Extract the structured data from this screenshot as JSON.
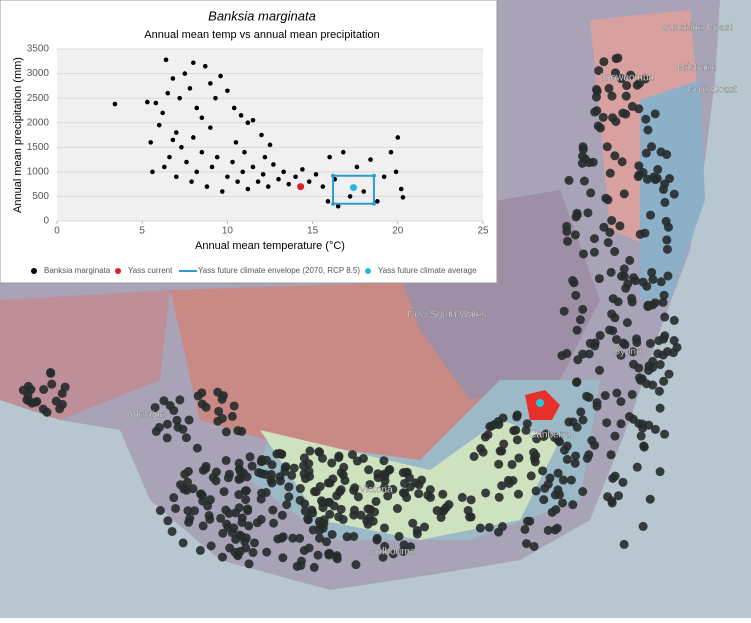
{
  "chart_data": {
    "type": "scatter",
    "title": "Banksia marginata",
    "subtitle": "Annual mean temp vs annual mean precipitation",
    "x_label": "Annual mean temperature (°C)",
    "y_label": "Annual mean precipitation (mm)",
    "xlim": [
      0,
      25
    ],
    "xticks": [
      0,
      5,
      10,
      15,
      20,
      25
    ],
    "ylim": [
      0,
      3500
    ],
    "yticks": [
      0,
      500,
      1000,
      1500,
      2000,
      2500,
      3000,
      3500
    ],
    "grid": true,
    "legend": "bottom",
    "series": [
      {
        "name": "Banksia marginata",
        "color": "#000000",
        "x": [
          3.4,
          5.3,
          5.8,
          6.0,
          6.2,
          6.4,
          6.5,
          6.8,
          7.0,
          7.2,
          7.5,
          7.8,
          8.0,
          8.2,
          8.5,
          8.7,
          9.0,
          9.3,
          9.6,
          10.0,
          10.4,
          10.8,
          11.2,
          11.5,
          12.0,
          12.5,
          5.5,
          5.6,
          6.3,
          6.6,
          7.0,
          7.3,
          7.6,
          7.9,
          8.2,
          8.5,
          8.8,
          9.1,
          9.4,
          9.7,
          10.0,
          10.3,
          10.6,
          10.9,
          11.2,
          11.5,
          11.8,
          12.1,
          12.4,
          12.7,
          13.0,
          13.3,
          13.6,
          14.0,
          14.4,
          14.8,
          15.2,
          15.6,
          16.0,
          16.3,
          16.8,
          17.2,
          17.6,
          18.0,
          18.4,
          18.8,
          19.2,
          19.6,
          20.0,
          20.2,
          20.3,
          19.9,
          15.9,
          16.5,
          8.0,
          9.0,
          10.5,
          11.0,
          12.2,
          6.8
        ],
        "values": [
          2380,
          2420,
          2400,
          1950,
          2200,
          3280,
          2600,
          2900,
          1800,
          2500,
          3000,
          2700,
          3220,
          2300,
          2100,
          3150,
          2800,
          2500,
          2950,
          2650,
          2300,
          2150,
          2000,
          2050,
          1750,
          1550,
          1600,
          1000,
          1100,
          1300,
          900,
          1500,
          1200,
          800,
          1000,
          1400,
          700,
          1100,
          1300,
          600,
          900,
          1200,
          800,
          1000,
          650,
          1100,
          800,
          950,
          700,
          1150,
          850,
          1000,
          750,
          900,
          1050,
          800,
          950,
          700,
          1300,
          850,
          1400,
          500,
          1100,
          600,
          1250,
          400,
          900,
          1400,
          1700,
          650,
          480,
          1000,
          400,
          300,
          1700,
          1900,
          1600,
          1400,
          1300,
          1650
        ]
      },
      {
        "name": "Yass current",
        "color": "#e02020",
        "x": [
          14.3
        ],
        "values": [
          700
        ]
      },
      {
        "name": "Yass future climate envelope (2070, RCP 8.5)",
        "color": "#2e9bd6",
        "type": "line",
        "x": [
          16.2,
          18.6,
          18.6,
          16.2,
          16.2
        ],
        "values": [
          920,
          920,
          350,
          350,
          920
        ]
      },
      {
        "name": "Yass future climate average",
        "color": "#29b6e8",
        "x": [
          17.4
        ],
        "values": [
          680
        ]
      }
    ]
  },
  "map": {
    "labels": [
      "Sunshine Coast",
      "Brisbane",
      "Gold Coast",
      "Toowoomba",
      "New South Wales",
      "Sydney",
      "Canberra",
      "Adelaide",
      "Victoria",
      "Melbourne"
    ]
  }
}
